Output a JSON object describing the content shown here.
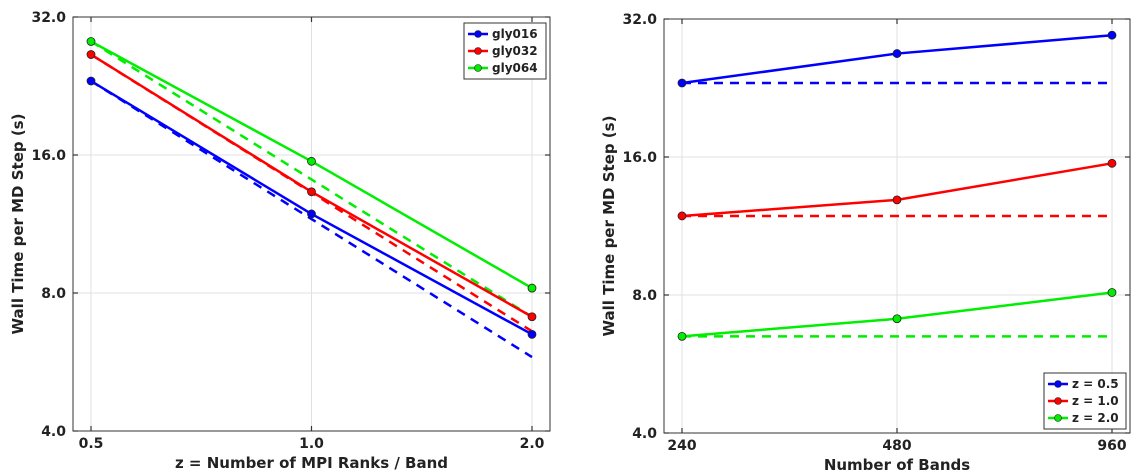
{
  "chart_data": [
    {
      "type": "line",
      "xlabel": "z = Number of MPI Ranks / Band",
      "ylabel": "Wall Time per MD Step (s)",
      "xscale": "log2",
      "yscale": "log2",
      "xlim": [
        0.5,
        2.0
      ],
      "ylim": [
        4.0,
        32.0
      ],
      "x": [
        0.5,
        1.0,
        2.0
      ],
      "xtick_labels": [
        "0.5",
        "1.0",
        "2.0"
      ],
      "yticks": [
        4.0,
        8.0,
        16.0,
        32.0
      ],
      "ytick_labels": [
        "4.0",
        "8.0",
        "16.0",
        "32.0"
      ],
      "grid": true,
      "legend_position": "top-right",
      "series": [
        {
          "name": "gly016",
          "color": "#0000ff",
          "values": [
            23.2,
            11.9,
            6.5
          ],
          "ideal": [
            23.2,
            11.6,
            5.8
          ]
        },
        {
          "name": "gly032",
          "color": "#ff0000",
          "values": [
            26.5,
            13.3,
            7.1
          ],
          "ideal": [
            26.5,
            13.25,
            6.6
          ]
        },
        {
          "name": "gly064",
          "color": "#00ee00",
          "values": [
            28.3,
            15.5,
            8.2
          ],
          "ideal": [
            28.3,
            14.15,
            7.1
          ]
        }
      ]
    },
    {
      "type": "line",
      "xlabel": "Number of Bands",
      "ylabel": "Wall Time per MD Step (s)",
      "xscale": "log2",
      "yscale": "log2",
      "xlim": [
        240,
        960
      ],
      "ylim": [
        4.0,
        32.0
      ],
      "x": [
        240,
        480,
        960
      ],
      "xtick_labels": [
        "240",
        "480",
        "960"
      ],
      "yticks": [
        4.0,
        8.0,
        16.0,
        32.0
      ],
      "ytick_labels": [
        "4.0",
        "8.0",
        "16.0",
        "32.0"
      ],
      "grid": true,
      "legend_position": "bottom-right",
      "series": [
        {
          "name": "z = 0.5",
          "color": "#0000ff",
          "values": [
            23.2,
            26.9,
            29.5
          ],
          "ideal": [
            23.2,
            23.2,
            23.2
          ]
        },
        {
          "name": "z = 1.0",
          "color": "#ff0000",
          "values": [
            11.9,
            12.9,
            15.5
          ],
          "ideal": [
            11.9,
            11.9,
            11.9
          ]
        },
        {
          "name": "z = 2.0",
          "color": "#00ee00",
          "values": [
            6.5,
            7.1,
            8.1
          ],
          "ideal": [
            6.5,
            6.5,
            6.5
          ]
        }
      ]
    }
  ]
}
